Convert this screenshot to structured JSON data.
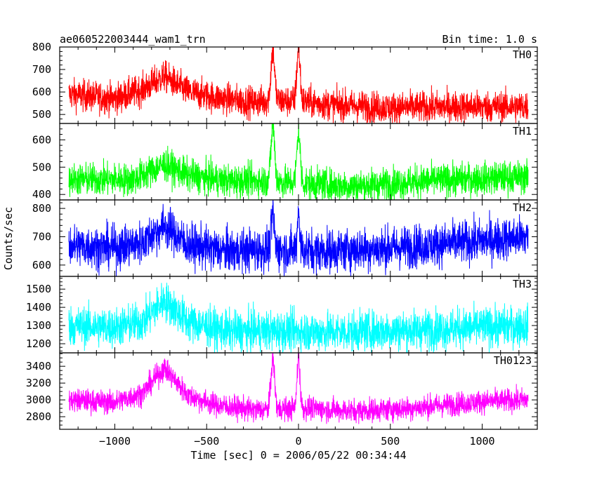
{
  "header": {
    "title": "ae060522003444_wam1_trn",
    "bin_time": "Bin time: 1.0 s"
  },
  "axes": {
    "ylabel": "Counts/sec",
    "xlabel": "Time [sec] 0 = 2006/05/22 00:34:44",
    "xlim": [
      -1300,
      1300
    ],
    "xticks": [
      -1000,
      -500,
      0,
      500,
      1000
    ],
    "xtick_labels": [
      "−1000",
      "−500",
      "0",
      "500",
      "1000"
    ]
  },
  "chart_data": {
    "type": "line",
    "x_range": [
      -1250,
      1250
    ],
    "bin_seconds": 1.0,
    "panels": [
      {
        "name": "TH0",
        "color": "#ff0000",
        "ylim": [
          460,
          800
        ],
        "yticks": [
          500,
          600,
          700,
          800
        ],
        "baseline_points": [
          [
            -1250,
            590
          ],
          [
            -1000,
            570
          ],
          [
            -850,
            610
          ],
          [
            -730,
            670
          ],
          [
            -600,
            600
          ],
          [
            -450,
            575
          ],
          [
            -250,
            555
          ],
          [
            -150,
            560
          ],
          [
            -100,
            560
          ],
          [
            50,
            555
          ],
          [
            150,
            545
          ],
          [
            500,
            530
          ],
          [
            900,
            535
          ],
          [
            1250,
            535
          ]
        ],
        "flares": [
          {
            "t": -140,
            "peak": 785,
            "width": 10
          },
          {
            "t": 0,
            "peak": 790,
            "width": 9
          }
        ],
        "noise": 35
      },
      {
        "name": "TH1",
        "color": "#00ff00",
        "ylim": [
          380,
          660
        ],
        "yticks": [
          400,
          500,
          600
        ],
        "baseline_points": [
          [
            -1250,
            455
          ],
          [
            -900,
            455
          ],
          [
            -730,
            510
          ],
          [
            -600,
            470
          ],
          [
            -400,
            450
          ],
          [
            -200,
            450
          ],
          [
            50,
            440
          ],
          [
            300,
            430
          ],
          [
            700,
            450
          ],
          [
            1250,
            465
          ]
        ],
        "flares": [
          {
            "t": -140,
            "peak": 650,
            "width": 10
          },
          {
            "t": 0,
            "peak": 630,
            "width": 9
          }
        ],
        "noise": 30
      },
      {
        "name": "TH2",
        "color": "#0000ff",
        "ylim": [
          560,
          830
        ],
        "yticks": [
          600,
          700,
          800
        ],
        "baseline_points": [
          [
            -1250,
            670
          ],
          [
            -1000,
            660
          ],
          [
            -850,
            680
          ],
          [
            -730,
            740
          ],
          [
            -600,
            670
          ],
          [
            -400,
            650
          ],
          [
            -150,
            655
          ],
          [
            100,
            650
          ],
          [
            500,
            660
          ],
          [
            900,
            680
          ],
          [
            1250,
            700
          ]
        ],
        "flares": [
          {
            "t": -140,
            "peak": 780,
            "width": 8
          },
          {
            "t": 0,
            "peak": 800,
            "width": 6
          }
        ],
        "noise": 38
      },
      {
        "name": "TH3",
        "color": "#00ffff",
        "ylim": [
          1150,
          1570
        ],
        "yticks": [
          1200,
          1300,
          1400,
          1500
        ],
        "baseline_points": [
          [
            -1250,
            1300
          ],
          [
            -1000,
            1290
          ],
          [
            -850,
            1320
          ],
          [
            -730,
            1440
          ],
          [
            -600,
            1320
          ],
          [
            -400,
            1270
          ],
          [
            -100,
            1270
          ],
          [
            200,
            1265
          ],
          [
            600,
            1275
          ],
          [
            1000,
            1290
          ],
          [
            1250,
            1300
          ]
        ],
        "flares": [],
        "noise": 55
      },
      {
        "name": "TH0123",
        "color": "#ff00ff",
        "ylim": [
          2650,
          3560
        ],
        "yticks": [
          2800,
          3000,
          3200,
          3400
        ],
        "baseline_points": [
          [
            -1250,
            3000
          ],
          [
            -1000,
            2970
          ],
          [
            -850,
            3080
          ],
          [
            -730,
            3380
          ],
          [
            -600,
            3050
          ],
          [
            -450,
            2940
          ],
          [
            -250,
            2880
          ],
          [
            -100,
            2890
          ],
          [
            50,
            2900
          ],
          [
            300,
            2870
          ],
          [
            600,
            2900
          ],
          [
            1000,
            2980
          ],
          [
            1250,
            3000
          ]
        ],
        "flares": [
          {
            "t": -140,
            "peak": 3480,
            "width": 10
          },
          {
            "t": 0,
            "peak": 3500,
            "width": 8
          }
        ],
        "noise": 70
      }
    ]
  }
}
